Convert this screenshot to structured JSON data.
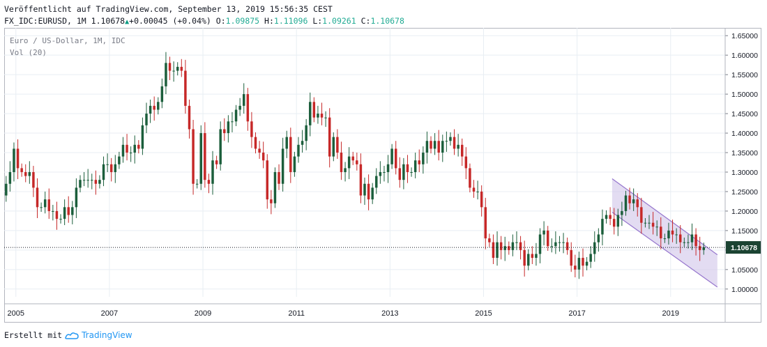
{
  "header": {
    "published": "Veröffentlicht auf TradingView.com, September 13, 2019 15:56:35 CEST",
    "symbol": "FX_IDC:EURUSD, 1M",
    "last": "1.10678",
    "change": "+0.00045 (+0.04%)",
    "o_label": "O:",
    "o_value": "1.09875",
    "h_label": "H:",
    "h_value": "1.11096",
    "l_label": "L:",
    "l_value": "1.09261",
    "c_label": "C:",
    "c_value": "1.10678"
  },
  "legend": {
    "title": "Euro / US-Dollar, 1M, IDC",
    "volume": "Vol (20)"
  },
  "footer": {
    "created_with": "Erstellt mit",
    "brand": "TradingView"
  },
  "colors": {
    "up": "#1b5e3b",
    "down": "#c62828",
    "grid": "#e8eef3",
    "axis_text": "#131722",
    "channel_fill": "#d1c4e9",
    "channel_line": "#9575cd",
    "price_tag": "#1b4332"
  },
  "chart_data": {
    "type": "candlestick",
    "title": "Euro / US-Dollar, 1M, IDC",
    "x_range": [
      "2004-10",
      "2020-03"
    ],
    "ylim": [
      0.98,
      1.67
    ],
    "y_ticks": [
      "1.65000",
      "1.60000",
      "1.55000",
      "1.50000",
      "1.45000",
      "1.40000",
      "1.35000",
      "1.30000",
      "1.25000",
      "1.20000",
      "1.15000",
      "1.10000",
      "1.05000",
      "1.00000"
    ],
    "x_ticks": [
      "2005",
      "2007",
      "2009",
      "2011",
      "2013",
      "2015",
      "2017",
      "2019"
    ],
    "last_price": "1.10678",
    "grid": true,
    "ohlc_monthly_close_approx": {
      "2004": [
        1.24,
        1.27,
        1.3,
        1.36
      ],
      "2005": [
        1.31,
        1.3,
        1.29,
        1.3,
        1.26,
        1.21,
        1.21,
        1.23,
        1.2,
        1.2,
        1.18,
        1.18
      ],
      "2006": [
        1.21,
        1.19,
        1.21,
        1.26,
        1.28,
        1.28,
        1.28,
        1.28,
        1.27,
        1.28,
        1.32,
        1.32
      ],
      "2007": [
        1.3,
        1.32,
        1.34,
        1.37,
        1.35,
        1.35,
        1.37,
        1.36,
        1.42,
        1.45,
        1.47,
        1.46
      ],
      "2008": [
        1.48,
        1.52,
        1.58,
        1.56,
        1.56,
        1.57,
        1.56,
        1.47,
        1.41,
        1.27,
        1.27,
        1.4
      ],
      "2009": [
        1.28,
        1.27,
        1.33,
        1.32,
        1.41,
        1.4,
        1.43,
        1.43,
        1.46,
        1.47,
        1.5,
        1.43
      ],
      "2010": [
        1.39,
        1.36,
        1.35,
        1.33,
        1.23,
        1.22,
        1.3,
        1.27,
        1.36,
        1.39,
        1.3,
        1.34
      ],
      "2011": [
        1.37,
        1.38,
        1.42,
        1.48,
        1.44,
        1.45,
        1.44,
        1.44,
        1.34,
        1.39,
        1.35,
        1.3
      ],
      "2012": [
        1.31,
        1.34,
        1.33,
        1.32,
        1.24,
        1.27,
        1.23,
        1.26,
        1.29,
        1.3,
        1.3,
        1.32
      ],
      "2013": [
        1.36,
        1.31,
        1.28,
        1.32,
        1.3,
        1.3,
        1.33,
        1.32,
        1.35,
        1.38,
        1.36,
        1.38
      ],
      "2014": [
        1.35,
        1.38,
        1.38,
        1.39,
        1.36,
        1.37,
        1.34,
        1.31,
        1.26,
        1.25,
        1.25,
        1.21
      ],
      "2015": [
        1.13,
        1.12,
        1.08,
        1.12,
        1.1,
        1.11,
        1.1,
        1.12,
        1.12,
        1.1,
        1.06,
        1.09
      ],
      "2016": [
        1.08,
        1.09,
        1.14,
        1.15,
        1.11,
        1.11,
        1.12,
        1.12,
        1.12,
        1.1,
        1.06,
        1.05
      ],
      "2017": [
        1.08,
        1.06,
        1.07,
        1.09,
        1.12,
        1.14,
        1.18,
        1.19,
        1.18,
        1.16,
        1.19,
        1.2
      ],
      "2018": [
        1.24,
        1.22,
        1.23,
        1.21,
        1.17,
        1.17,
        1.17,
        1.16,
        1.16,
        1.13,
        1.13,
        1.15
      ],
      "2019": [
        1.14,
        1.14,
        1.12,
        1.12,
        1.12,
        1.14,
        1.11,
        1.1,
        1.107
      ]
    },
    "channel": {
      "upper_start": [
        "2017-10",
        1.283
      ],
      "upper_end": [
        "2020-01",
        1.088
      ],
      "lower_start": [
        "2017-10",
        1.197
      ],
      "lower_end": [
        "2020-01",
        1.005
      ]
    }
  }
}
